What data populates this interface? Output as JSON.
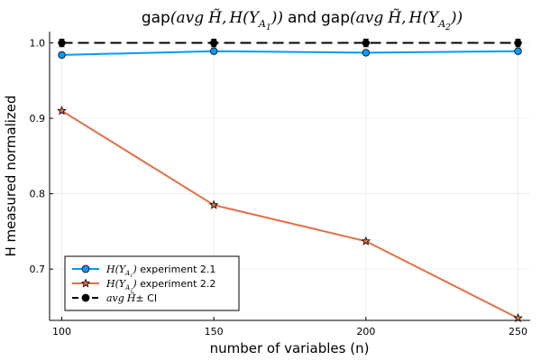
{
  "chart_data": {
    "type": "line",
    "title_parts": {
      "gap": "gap",
      "avg": "avg",
      "htilde": "H̃",
      "sep": ",",
      "H": "H",
      "Y": "Y",
      "A": "A",
      "sub1": "1",
      "sub2": "2",
      "open": "(",
      "close": "))",
      "and": "and"
    },
    "xlabel": "number of variables (n)",
    "ylabel": "H measured normalized",
    "x": [
      100,
      150,
      200,
      250
    ],
    "xticks": [
      "100",
      "150",
      "200",
      "250"
    ],
    "yticks": [
      "0.7",
      "0.8",
      "0.9",
      "1.0"
    ],
    "ytick_values": [
      0.7,
      0.8,
      0.9,
      1.0
    ],
    "xlim": [
      96,
      254
    ],
    "ylim": [
      0.632,
      1.015
    ],
    "grid": true,
    "legend_position": "bottom-left",
    "series": [
      {
        "name": "H(Y_A1) experiment 2.1",
        "legend_math": {
          "H": "H",
          "Y": "Y",
          "A": "A",
          "sub": "1"
        },
        "legend_text": " experiment 2.1",
        "values": [
          0.984,
          0.989,
          0.987,
          0.989
        ],
        "color": "#009AFA",
        "marker": "circle"
      },
      {
        "name": "H(Y_A2) experiment 2.2",
        "legend_math": {
          "H": "H",
          "Y": "Y",
          "A": "A",
          "sub": "2"
        },
        "legend_text": " experiment 2.2",
        "values": [
          0.91,
          0.785,
          0.737,
          0.635
        ],
        "color": "#E26F46",
        "marker": "star"
      },
      {
        "name": "avg H̃ ± CI",
        "legend_math": {
          "avg": "avg",
          "htilde": "H̃"
        },
        "legend_text": "± CI",
        "values": [
          1.0,
          1.0,
          1.0,
          1.0
        ],
        "errors": [
          0.005,
          0.005,
          0.005,
          0.005
        ],
        "color": "#000000",
        "marker": "circle",
        "dashed": true
      }
    ]
  }
}
